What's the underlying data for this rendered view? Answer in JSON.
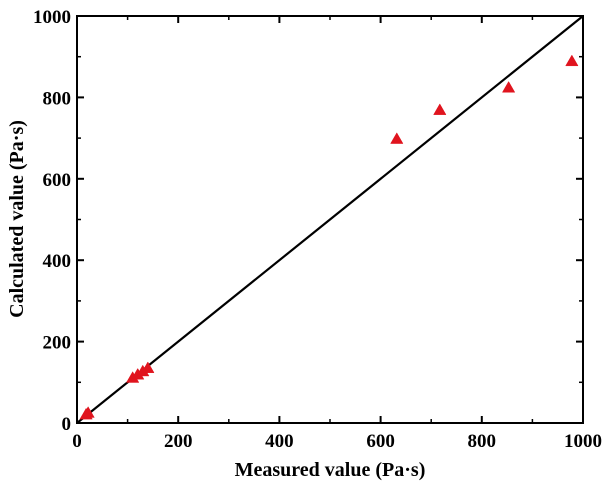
{
  "chart_data": {
    "type": "scatter",
    "title": "",
    "xlabel": "Measured value (Pa·s)",
    "ylabel": "Calculated value (Pa·s)",
    "xlim": [
      0,
      1000
    ],
    "ylim": [
      0,
      1000
    ],
    "x_ticks": [
      "0",
      "200",
      "400",
      "600",
      "800",
      "1000"
    ],
    "y_ticks": [
      "0",
      "200",
      "400",
      "600",
      "800",
      "1000"
    ],
    "grid": false,
    "legend": "none",
    "series": [
      {
        "marker": "triangle",
        "color": "#e0141e",
        "points": [
          {
            "x": 18,
            "y": 20
          },
          {
            "x": 22,
            "y": 24
          },
          {
            "x": 110,
            "y": 110
          },
          {
            "x": 120,
            "y": 118
          },
          {
            "x": 130,
            "y": 126
          },
          {
            "x": 140,
            "y": 134
          },
          {
            "x": 632,
            "y": 697
          },
          {
            "x": 717,
            "y": 768
          },
          {
            "x": 853,
            "y": 823
          },
          {
            "x": 978,
            "y": 888
          }
        ]
      }
    ],
    "reference_line": {
      "x": [
        0,
        1000
      ],
      "y": [
        0,
        1000
      ],
      "color": "#000000"
    }
  }
}
